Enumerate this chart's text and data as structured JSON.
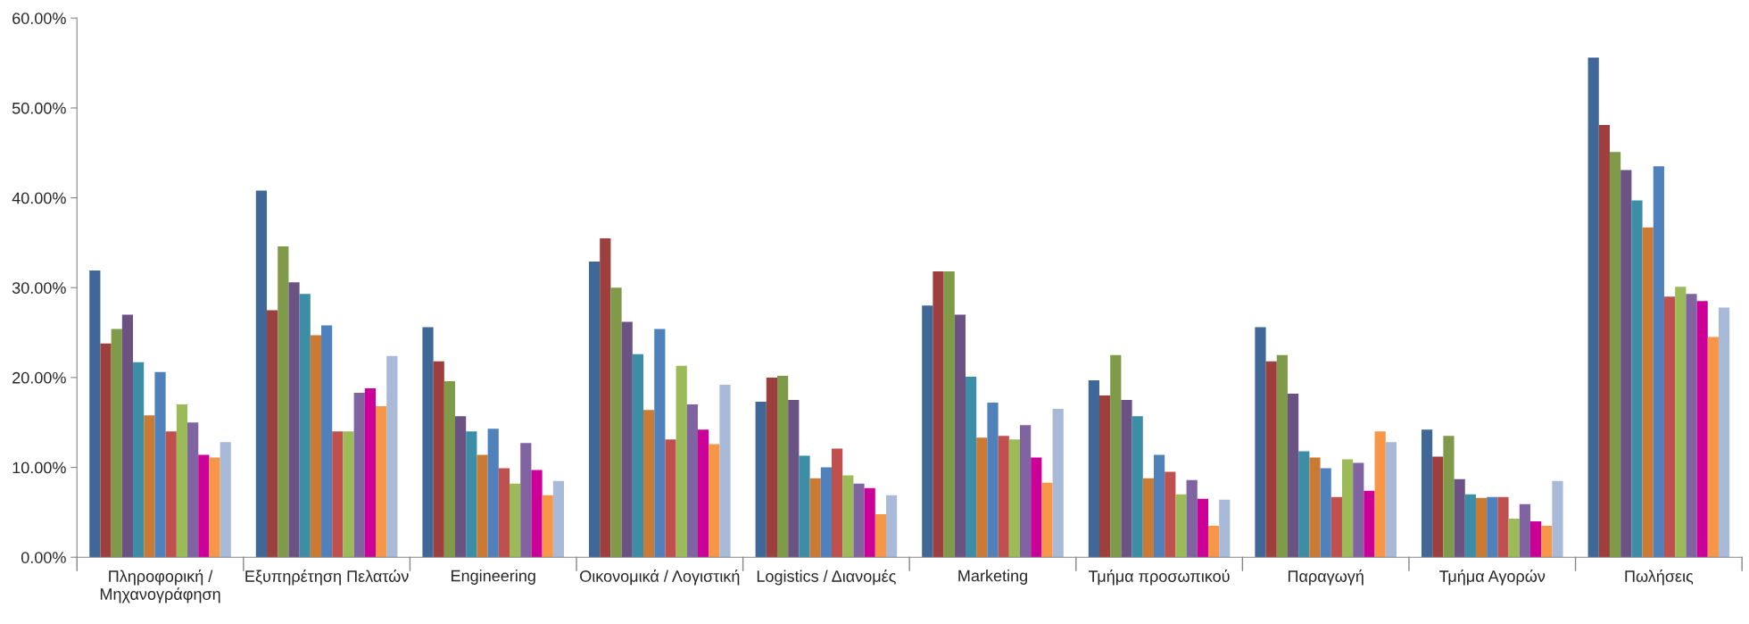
{
  "chart_data": {
    "type": "bar",
    "categories": [
      "Πληροφορική /\nΜηχανογράφηση",
      "Εξυπηρέτηση Πελατών",
      "Engineering",
      "Οικονομικά / Λογιστική",
      "Logistics / Διανομές",
      "Marketing",
      "Τμήμα προσωπικού",
      "Παραγωγή",
      "Τμήμα Αγορών",
      "Πωλήσεις"
    ],
    "series": [
      {
        "color": "#3f6797",
        "values": [
          31.9,
          40.8,
          25.6,
          32.9,
          17.3,
          28.0,
          19.7,
          25.6,
          14.2,
          55.6
        ]
      },
      {
        "color": "#9c3f3d",
        "values": [
          23.8,
          27.5,
          21.8,
          35.5,
          20.0,
          31.8,
          18.0,
          21.8,
          11.2,
          48.1
        ]
      },
      {
        "color": "#7f9a48",
        "values": [
          25.4,
          34.6,
          19.6,
          30.0,
          20.2,
          31.8,
          22.5,
          22.5,
          13.5,
          45.1
        ]
      },
      {
        "color": "#6a5283",
        "values": [
          27.0,
          30.6,
          15.7,
          26.2,
          17.5,
          27.0,
          17.5,
          18.2,
          8.7,
          43.1
        ]
      },
      {
        "color": "#3b8ea5",
        "values": [
          21.7,
          29.3,
          14.0,
          22.6,
          11.3,
          20.1,
          15.7,
          11.8,
          7.0,
          39.7
        ]
      },
      {
        "color": "#cb7a34",
        "values": [
          15.8,
          24.7,
          11.4,
          16.4,
          8.8,
          13.3,
          8.8,
          11.1,
          6.6,
          36.7
        ]
      },
      {
        "color": "#4f81bd",
        "values": [
          20.6,
          25.8,
          14.3,
          25.4,
          10.0,
          17.2,
          11.4,
          9.9,
          6.7,
          43.5
        ]
      },
      {
        "color": "#c0504d",
        "values": [
          14.0,
          14.0,
          9.9,
          13.1,
          12.1,
          13.5,
          9.5,
          6.7,
          6.7,
          29.0
        ]
      },
      {
        "color": "#9bbb59",
        "values": [
          17.0,
          14.0,
          8.2,
          21.3,
          9.1,
          13.1,
          7.0,
          10.9,
          4.3,
          30.1
        ]
      },
      {
        "color": "#8064a2",
        "values": [
          15.0,
          18.3,
          12.7,
          17.0,
          8.2,
          14.7,
          8.6,
          10.5,
          5.9,
          29.3
        ]
      },
      {
        "color": "#cc0099",
        "values": [
          11.4,
          18.8,
          9.7,
          14.2,
          7.7,
          11.1,
          6.5,
          7.4,
          4.0,
          28.5
        ]
      },
      {
        "color": "#f79646",
        "values": [
          11.1,
          16.8,
          6.9,
          12.6,
          4.8,
          8.3,
          3.5,
          14.0,
          3.5,
          24.5
        ]
      },
      {
        "color": "#a9b9d8",
        "values": [
          12.8,
          22.4,
          8.5,
          19.2,
          6.9,
          16.5,
          6.4,
          12.8,
          8.5,
          27.8
        ]
      }
    ],
    "ylim": [
      0,
      60
    ],
    "yticks": [
      {
        "value": 0,
        "label": "0.00%"
      },
      {
        "value": 10,
        "label": "10.00%"
      },
      {
        "value": 20,
        "label": "20.00%"
      },
      {
        "value": 30,
        "label": "30.00%"
      },
      {
        "value": 40,
        "label": "40.00%"
      },
      {
        "value": 50,
        "label": "50.00%"
      },
      {
        "value": 60,
        "label": "60.00%"
      }
    ],
    "grid": false,
    "legend": false
  }
}
